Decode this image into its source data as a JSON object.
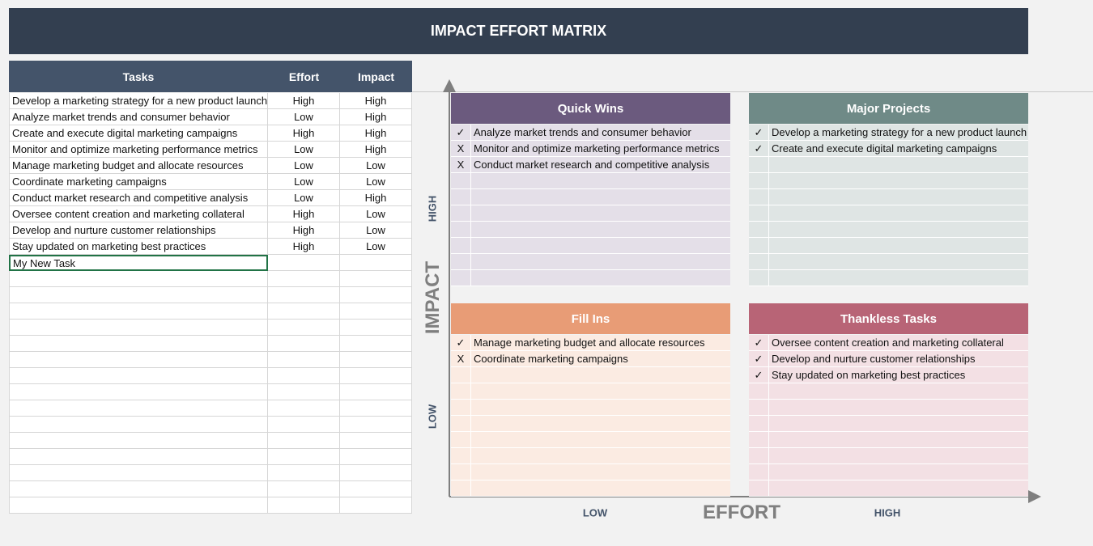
{
  "header": {
    "title": "IMPACT EFFORT MATRIX"
  },
  "table": {
    "headers": [
      "Tasks",
      "Effort",
      "Impact"
    ],
    "rows": [
      [
        "Develop a marketing strategy for a new product launch",
        "High",
        "High"
      ],
      [
        "Analyze market trends and consumer behavior",
        "Low",
        "High"
      ],
      [
        "Create and execute digital marketing campaigns",
        "High",
        "High"
      ],
      [
        "Monitor and optimize marketing performance metrics",
        "Low",
        "High"
      ],
      [
        "Manage marketing budget and allocate resources",
        "Low",
        "Low"
      ],
      [
        "Coordinate marketing campaigns",
        "Low",
        "Low"
      ],
      [
        "Conduct market research and competitive analysis",
        "Low",
        "High"
      ],
      [
        "Oversee content creation and marketing collateral",
        "High",
        "Low"
      ],
      [
        "Develop and nurture customer relationships",
        "High",
        "Low"
      ],
      [
        "Stay updated on marketing best practices",
        "High",
        "Low"
      ],
      [
        "My New Task"
      ]
    ]
  },
  "quadrants": [
    {
      "title": "Quick Wins",
      "items": [
        {
          "mark": "✓",
          "text": "Analyze market trends and consumer behavior"
        },
        {
          "mark": "X",
          "text": "Monitor and optimize marketing performance metrics"
        },
        {
          "mark": "X",
          "text": "Conduct market research and competitive analysis"
        }
      ]
    },
    {
      "title": "Major Projects",
      "items": [
        {
          "mark": "✓",
          "text": "Develop a marketing strategy for a new product launch"
        },
        {
          "mark": "✓",
          "text": "Create and execute digital marketing campaigns"
        }
      ]
    },
    {
      "title": "Fill Ins",
      "items": [
        {
          "mark": "✓",
          "text": "Manage marketing budget and allocate resources"
        },
        {
          "mark": "X",
          "text": "Coordinate marketing campaigns"
        }
      ]
    },
    {
      "title": "Thankless Tasks",
      "items": [
        {
          "mark": "✓",
          "text": "Oversee content creation and marketing collateral"
        },
        {
          "mark": "✓",
          "text": "Develop and nurture customer relationships"
        },
        {
          "mark": "✓",
          "text": "Stay updated on marketing best practices"
        }
      ]
    }
  ],
  "axes": {
    "y_title": "IMPACT",
    "y_high": "HIGH",
    "y_low": "LOW",
    "x_title": "EFFORT",
    "x_low": "LOW",
    "x_high": "HIGH"
  }
}
